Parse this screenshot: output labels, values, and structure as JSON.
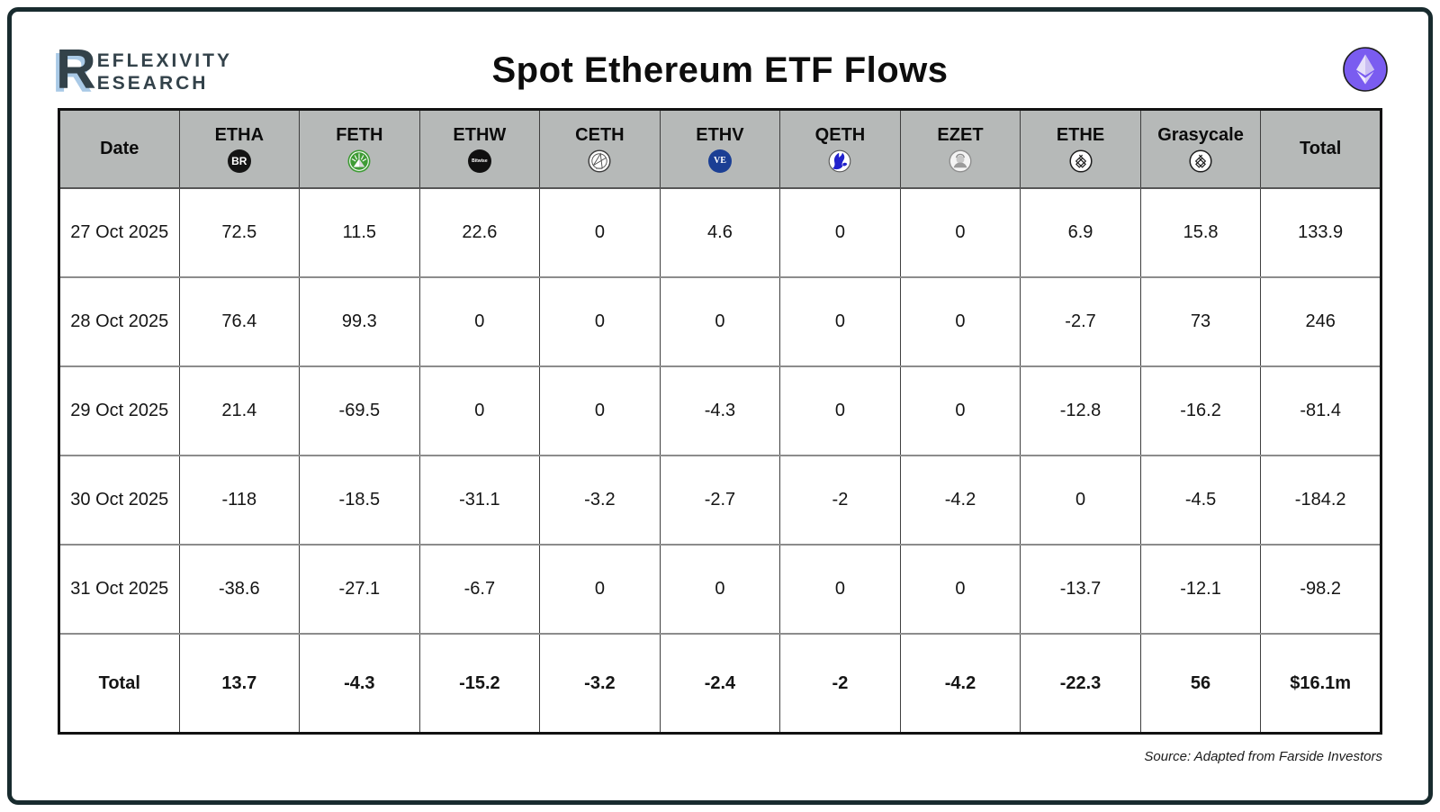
{
  "chart_data": {
    "type": "table",
    "title": "Spot Ethereum ETF Flows",
    "source_note": "Source: Adapted from Farside Investors",
    "columns": [
      {
        "label": "Date",
        "icon": null
      },
      {
        "label": "ETHA",
        "icon": "blackrock-icon"
      },
      {
        "label": "FETH",
        "icon": "fidelity-icon"
      },
      {
        "label": "ETHW",
        "icon": "bitwise-icon"
      },
      {
        "label": "CETH",
        "icon": "21shares-icon"
      },
      {
        "label": "ETHV",
        "icon": "vaneck-icon"
      },
      {
        "label": "QETH",
        "icon": "invesco-galaxy-icon"
      },
      {
        "label": "EZET",
        "icon": "franklin-templeton-icon"
      },
      {
        "label": "ETHE",
        "icon": "grayscale-icon"
      },
      {
        "label": "Grasycale",
        "icon": "grayscale-icon"
      },
      {
        "label": "Total",
        "icon": null
      }
    ],
    "rows": [
      {
        "date": "27 Oct 2025",
        "values": [
          "72.5",
          "11.5",
          "22.6",
          "0",
          "4.6",
          "0",
          "0",
          "6.9",
          "15.8",
          "133.9"
        ]
      },
      {
        "date": "28 Oct 2025",
        "values": [
          "76.4",
          "99.3",
          "0",
          "0",
          "0",
          "0",
          "0",
          "-2.7",
          "73",
          "246"
        ]
      },
      {
        "date": "29 Oct 2025",
        "values": [
          "21.4",
          "-69.5",
          "0",
          "0",
          "-4.3",
          "0",
          "0",
          "-12.8",
          "-16.2",
          "-81.4"
        ]
      },
      {
        "date": "30 Oct 2025",
        "values": [
          "-118",
          "-18.5",
          "-31.1",
          "-3.2",
          "-2.7",
          "-2",
          "-4.2",
          "0",
          "-4.5",
          "-184.2"
        ]
      },
      {
        "date": "31 Oct 2025",
        "values": [
          "-38.6",
          "-27.1",
          "-6.7",
          "0",
          "0",
          "0",
          "0",
          "-13.7",
          "-12.1",
          "-98.2"
        ]
      }
    ],
    "total_row": {
      "label": "Total",
      "values": [
        "13.7",
        "-4.3",
        "-15.2",
        "-3.2",
        "-2.4",
        "-2",
        "-4.2",
        "-22.3",
        "56",
        "$16.1m"
      ]
    }
  },
  "logo": {
    "initial": "R",
    "line1": "EFLEXIVITY",
    "line2": "ESEARCH"
  },
  "badge": {
    "name": "ethereum-icon"
  },
  "icon_text": {
    "blackrock": "BR",
    "bitwise": "Bitwise",
    "vaneck": "VE"
  },
  "colors": {
    "frame_dark": "#182b2e",
    "header_gray": "#b6b9b8",
    "eth_purple": "#7a5cf0",
    "fidelity_green": "#3f9c35",
    "vaneck_blue": "#1b3f94",
    "invesco_blue": "#2222cc",
    "logo_slate": "#33424a",
    "logo_blue_shadow": "#a9c9e6"
  }
}
